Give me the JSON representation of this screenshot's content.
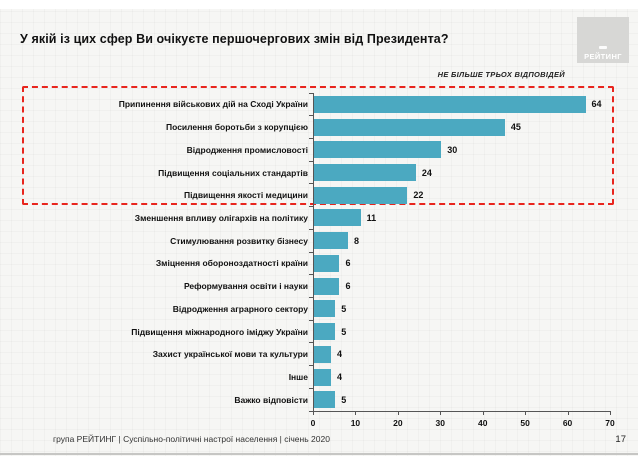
{
  "slide": {
    "title": "У якій із цих сфер Ви очікуєте першочергових змін від Президента?",
    "logo_text": "РЕЙТИНГ",
    "note": "НЕ БІЛЬШЕ ТРЬОХ ВІДПОВІДЕЙ",
    "footer": "група РЕЙТИНГ | Суспільно-політичні настрої населення | січень 2020",
    "page_number": "17"
  },
  "chart_data": {
    "type": "bar",
    "orientation": "horizontal",
    "title": "У якій із цих сфер Ви очікуєте першочергових змін від Президента?",
    "annotation": "НЕ БІЛЬШЕ ТРЬОХ ВІДПОВІДЕЙ",
    "categories": [
      "Припинення військових дій на Сході України",
      "Посилення боротьби з корупцією",
      "Відродження промисловості",
      "Підвищення соціальних стандартів",
      "Підвищення якості медицини",
      "Зменшення впливу олігархів на політику",
      "Стимулювання розвитку бізнесу",
      "Зміцнення обороноздатності країни",
      "Реформування освіти і науки",
      "Відродження аграрного сектору",
      "Підвищення міжнародного іміджу України",
      "Захист української мови та культури",
      "Інше",
      "Важко відповісти"
    ],
    "values": [
      64,
      45,
      30,
      24,
      22,
      11,
      8,
      6,
      6,
      5,
      5,
      4,
      4,
      5
    ],
    "xlim": [
      0,
      70
    ],
    "x_ticks": [
      0,
      10,
      20,
      30,
      40,
      50,
      60,
      70
    ],
    "grid": false,
    "bar_color": "#4ba9c1",
    "highlight_box_color": "#e8251d",
    "highlighted_rows": 5
  }
}
